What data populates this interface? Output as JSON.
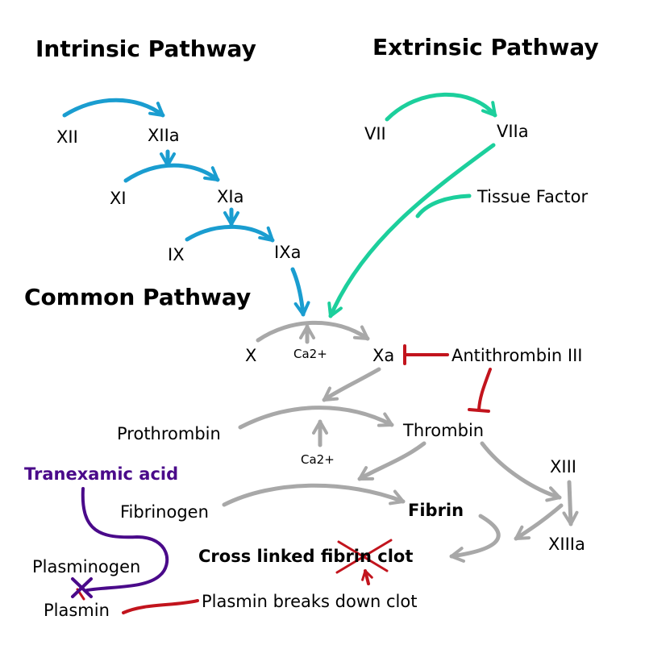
{
  "titles": {
    "intrinsic": "Intrinsic Pathway",
    "extrinsic": "Extrinsic Pathway",
    "common": "Common Pathway"
  },
  "factors": {
    "xii": "XII",
    "xiia": "XIIa",
    "xi": "XI",
    "xia": "XIa",
    "ix": "IX",
    "ixa": "IXa",
    "vii": "VII",
    "viia": "VIIa",
    "tissue_factor": "Tissue Factor",
    "x": "X",
    "xa": "Xa",
    "antithrombin": "Antithrombin III",
    "prothrombin": "Prothrombin",
    "thrombin": "Thrombin",
    "xiii": "XIII",
    "xiiia": "XIIIa",
    "fibrinogen": "Fibrinogen",
    "fibrin": "Fibrin",
    "clot_prefix": "Cross linked ",
    "clot_word": "fibrin",
    "clot_suffix": " clot",
    "plasminogen": "Plasminogen",
    "plasmin": "Plasmin",
    "plasmin_note": "Plasmin breaks down clot"
  },
  "cofactors": {
    "ca1": "Ca2+",
    "ca2": "Ca2+"
  },
  "drug": {
    "name": "Tranexamic acid"
  },
  "colors": {
    "intrinsic": "#1a9dd0",
    "extrinsic": "#1ccf9c",
    "common": "#a8a8a8",
    "inhibit": "#c2141d",
    "drug": "#4a0a8a"
  }
}
